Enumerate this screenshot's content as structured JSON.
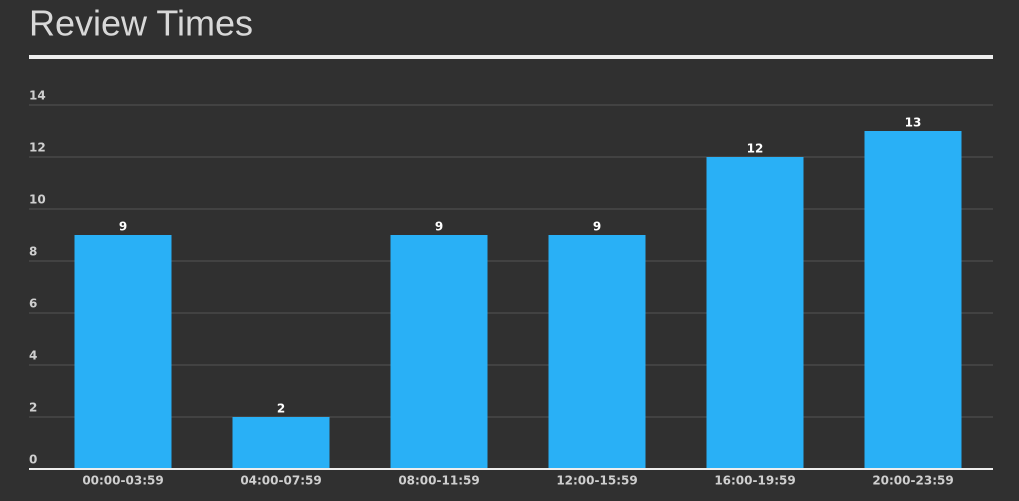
{
  "chart_data": {
    "type": "bar",
    "title": "Review Times",
    "categories": [
      "00:00-03:59",
      "04:00-07:59",
      "08:00-11:59",
      "12:00-15:59",
      "16:00-19:59",
      "20:00-23:59"
    ],
    "values": [
      9,
      2,
      9,
      9,
      12,
      13
    ],
    "color": "#29b0f6",
    "ylim": [
      0,
      14
    ],
    "yticks": [
      0,
      2,
      4,
      6,
      8,
      10,
      12,
      14
    ],
    "grid": true
  }
}
